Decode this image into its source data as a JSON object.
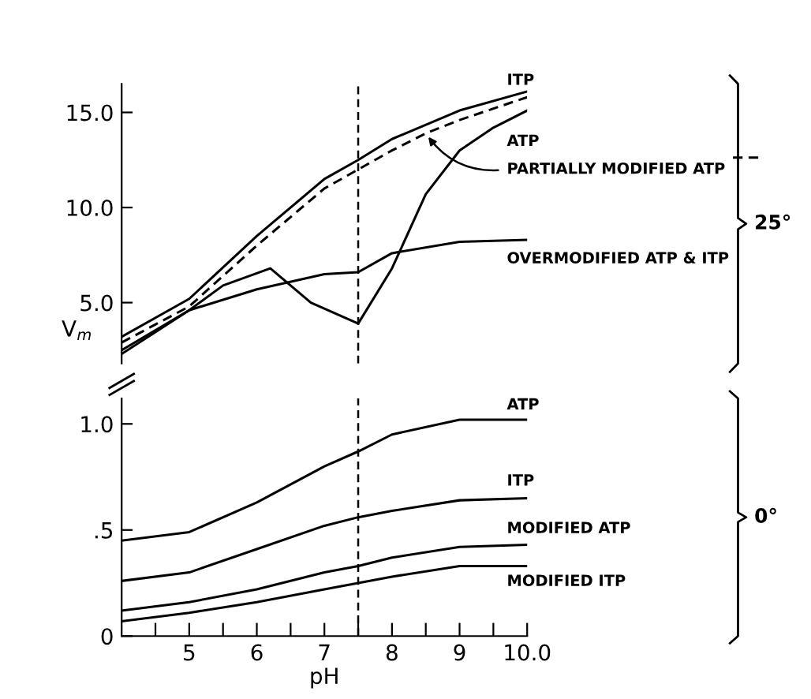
{
  "chart_data": [
    {
      "type": "line",
      "ylabel": "V$_{m}$",
      "xlim": [
        4,
        10
      ],
      "ylim": [
        1.8,
        16.5
      ],
      "yticks": [
        {
          "value": 5,
          "label": "5.0"
        },
        {
          "value": 10,
          "label": "10.0"
        },
        {
          "value": 15,
          "label": "15.0"
        }
      ],
      "tick_labels": "y",
      "grid": false,
      "marker": "none",
      "annotations": [
        "25°"
      ],
      "ref_lines": [
        {
          "axis": "x",
          "value": 7.5,
          "line_style": "dashed",
          "color": "#000000"
        }
      ],
      "series": [
        {
          "name": "ITP",
          "color": "#000000",
          "line_style": "solid",
          "x": [
            4,
            5,
            6,
            7,
            7.5,
            8,
            9,
            10
          ],
          "values": [
            3.2,
            5.2,
            8.5,
            11.5,
            12.5,
            13.6,
            15.1,
            16.1
          ]
        },
        {
          "name": "ATP",
          "color": "#000000",
          "line_style": "solid",
          "x": [
            4,
            5,
            5.5,
            6.2,
            6.8,
            7.5,
            8,
            8.5,
            9,
            9.5,
            10
          ],
          "values": [
            2.5,
            4.6,
            5.9,
            6.8,
            5.0,
            3.9,
            6.8,
            10.7,
            13.0,
            14.2,
            15.1
          ]
        },
        {
          "name": "PARTIALLY MODIFIED ATP",
          "color": "#000000",
          "line_style": "dashed",
          "x": [
            4,
            5,
            6,
            7,
            7.5,
            8,
            8.5,
            9,
            10
          ],
          "values": [
            2.9,
            4.8,
            8.0,
            11.0,
            12.0,
            13.0,
            13.9,
            14.6,
            15.8
          ]
        },
        {
          "name": "OVERMODIFIED ATP & ITP",
          "color": "#000000",
          "line_style": "solid",
          "x": [
            4,
            5,
            6,
            7,
            7.5,
            8,
            9,
            10
          ],
          "values": [
            2.3,
            4.6,
            5.7,
            6.5,
            6.6,
            7.6,
            8.2,
            8.3
          ]
        }
      ]
    },
    {
      "type": "line",
      "xlabel": "pH",
      "xlim": [
        4,
        10
      ],
      "ylim": [
        0,
        1.12
      ],
      "xticks": [
        {
          "value": 4.5,
          "label": null
        },
        5,
        {
          "value": 5.5,
          "label": null
        },
        6,
        {
          "value": 6.5,
          "label": null
        },
        7,
        {
          "value": 7.5,
          "label": null
        },
        8,
        {
          "value": 8.5,
          "label": null
        },
        9,
        {
          "value": 9.5,
          "label": null
        },
        {
          "value": 10,
          "label": "10.0"
        }
      ],
      "yticks": [
        0,
        {
          "value": 0.5,
          "label": ".5"
        },
        {
          "value": 1.0,
          "label": "1.0"
        }
      ],
      "grid": false,
      "marker": "none",
      "annotations": [
        "0°"
      ],
      "ref_lines": [
        {
          "axis": "x",
          "value": 7.5,
          "line_style": "dashed",
          "color": "#000000"
        }
      ],
      "series": [
        {
          "name": "ATP",
          "color": "#000000",
          "line_style": "solid",
          "x": [
            4,
            5,
            6,
            7,
            7.5,
            8,
            9,
            10
          ],
          "values": [
            0.45,
            0.49,
            0.63,
            0.8,
            0.87,
            0.95,
            1.02,
            1.02
          ]
        },
        {
          "name": "ITP",
          "color": "#000000",
          "line_style": "solid",
          "x": [
            4,
            5,
            6,
            7,
            7.5,
            8,
            9,
            10
          ],
          "values": [
            0.26,
            0.3,
            0.41,
            0.52,
            0.56,
            0.59,
            0.64,
            0.65
          ]
        },
        {
          "name": "MODIFIED ATP",
          "color": "#000000",
          "line_style": "solid",
          "x": [
            4,
            5,
            6,
            7,
            7.5,
            8,
            9,
            10
          ],
          "values": [
            0.12,
            0.16,
            0.22,
            0.3,
            0.33,
            0.37,
            0.42,
            0.43
          ]
        },
        {
          "name": "MODIFIED ITP",
          "color": "#000000",
          "line_style": "solid",
          "x": [
            4,
            5,
            6,
            7,
            7.5,
            8,
            9,
            10
          ],
          "values": [
            0.07,
            0.11,
            0.16,
            0.22,
            0.25,
            0.28,
            0.33,
            0.33
          ]
        }
      ]
    }
  ]
}
